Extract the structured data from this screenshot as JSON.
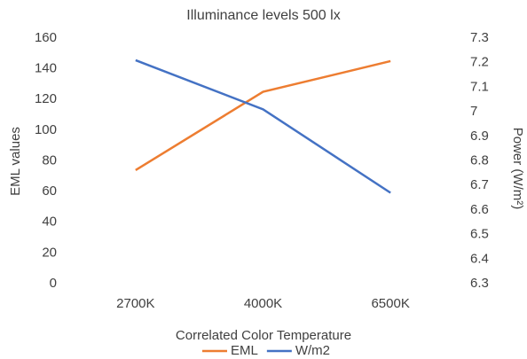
{
  "chart_data": {
    "type": "line",
    "title": "Illuminance levels 500 lx",
    "x_label": "Correlated Color Temperature",
    "y_label": "EML values",
    "y2_label": "Power (W/m²)",
    "categories": [
      "2700K",
      "4000K",
      "6500K"
    ],
    "series": [
      {
        "name": "EML",
        "color": "#ed7d31",
        "values": [
          74,
          125,
          145
        ]
      },
      {
        "name": "W/m2",
        "color": "#4472c4",
        "axis": "y2",
        "values": [
          7.21,
          7.01,
          6.67
        ]
      }
    ],
    "ylim": [
      0,
      160
    ],
    "yticks": [
      0,
      20,
      40,
      60,
      80,
      100,
      120,
      140,
      160
    ],
    "y2lim": [
      6.3,
      7.3
    ],
    "y2ticks": [
      6.3,
      6.4,
      6.5,
      6.6,
      6.7,
      6.8,
      6.9,
      7,
      7.1,
      7.2,
      7.3
    ],
    "grid": false,
    "legend": "bottom"
  }
}
